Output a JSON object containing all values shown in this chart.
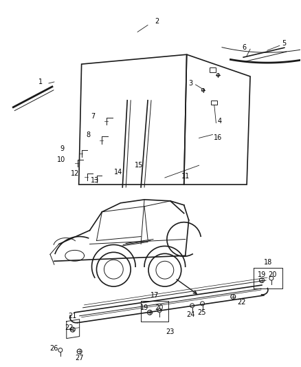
{
  "background_color": "#ffffff",
  "line_color": "#1a1a1a",
  "figure_size": [
    4.38,
    5.33
  ],
  "dpi": 100,
  "label_font_size": 7.0
}
